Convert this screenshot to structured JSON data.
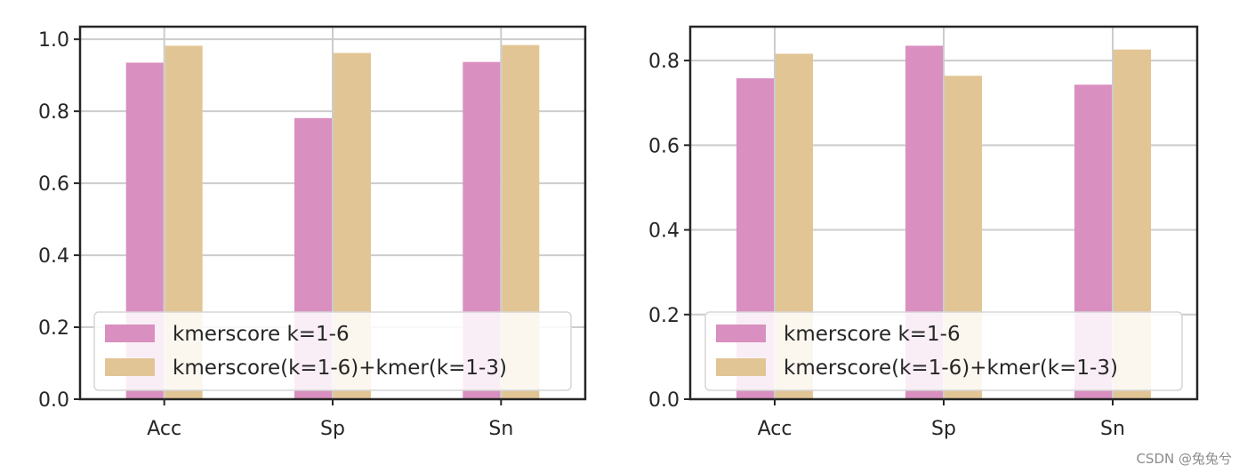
{
  "chart_data": [
    {
      "type": "bar",
      "categories": [
        "Acc",
        "Sp",
        "Sn"
      ],
      "series": [
        {
          "name": "kmerscore k=1-6",
          "values": [
            0.935,
            0.781,
            0.937
          ],
          "color": "#d98fbf"
        },
        {
          "name": "kmerscore(k=1-6)+kmer(k=1-3)",
          "values": [
            0.982,
            0.962,
            0.984
          ],
          "color": "#e2c595"
        }
      ],
      "yticks": [
        "0.0",
        "0.2",
        "0.4",
        "0.6",
        "0.8",
        "1.0"
      ],
      "ylim": [
        0,
        1.035
      ],
      "grid": true,
      "legend": "lower-center"
    },
    {
      "type": "bar",
      "categories": [
        "Acc",
        "Sp",
        "Sn"
      ],
      "series": [
        {
          "name": "kmerscore k=1-6",
          "values": [
            0.758,
            0.835,
            0.743
          ],
          "color": "#d98fbf"
        },
        {
          "name": "kmerscore(k=1-6)+kmer(k=1-3)",
          "values": [
            0.816,
            0.764,
            0.826
          ],
          "color": "#e2c595"
        }
      ],
      "yticks": [
        "0.0",
        "0.2",
        "0.4",
        "0.6",
        "0.8"
      ],
      "ylim": [
        0,
        0.88
      ],
      "grid": true,
      "legend": "lower-center"
    }
  ],
  "watermark": "CSDN @兔兔兮"
}
